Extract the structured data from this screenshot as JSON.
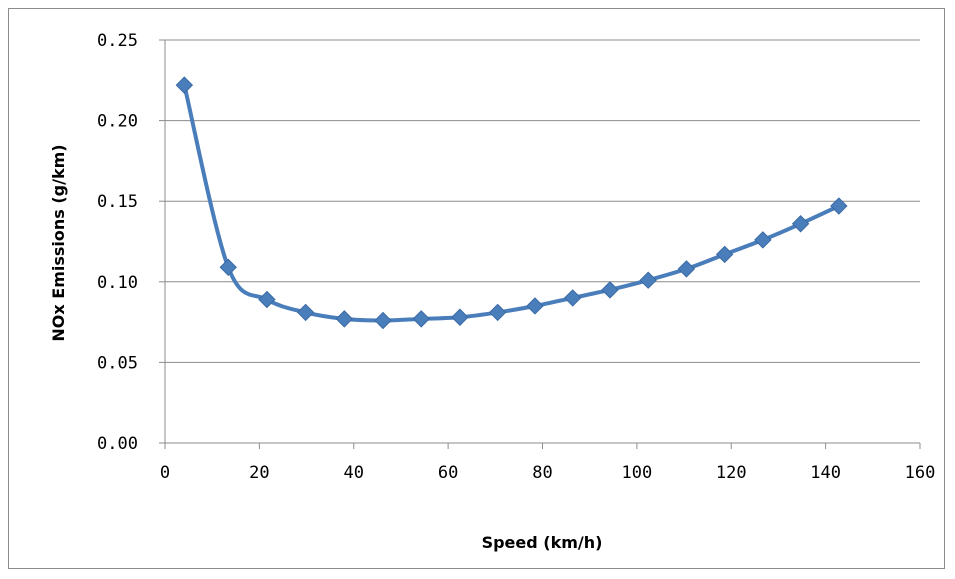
{
  "chart_data": {
    "type": "line",
    "title": "",
    "xlabel": "Speed (km/h)",
    "ylabel": "NOx Emissions (g/km)",
    "xlim": [
      0,
      160
    ],
    "ylim": [
      0,
      0.25
    ],
    "x_ticks": [
      "0",
      "20",
      "40",
      "60",
      "80",
      "100",
      "120",
      "140",
      "160"
    ],
    "y_ticks": [
      "0.00",
      "0.05",
      "0.10",
      "0.15",
      "0.20",
      "0.25"
    ],
    "grid": "horizontal",
    "legend": "none",
    "series": [
      {
        "color": "#4a7ebb",
        "marker": "diamond",
        "smooth": true,
        "x": [
          4.1,
          13.4,
          21.6,
          29.8,
          38.0,
          46.2,
          54.3,
          62.5,
          70.5,
          78.4,
          86.4,
          94.3,
          102.4,
          110.5,
          118.6,
          126.7,
          134.7,
          142.8
        ],
        "y": [
          0.222,
          0.109,
          0.089,
          0.081,
          0.077,
          0.076,
          0.077,
          0.078,
          0.081,
          0.085,
          0.09,
          0.095,
          0.101,
          0.108,
          0.117,
          0.126,
          0.136,
          0.147
        ]
      }
    ]
  }
}
